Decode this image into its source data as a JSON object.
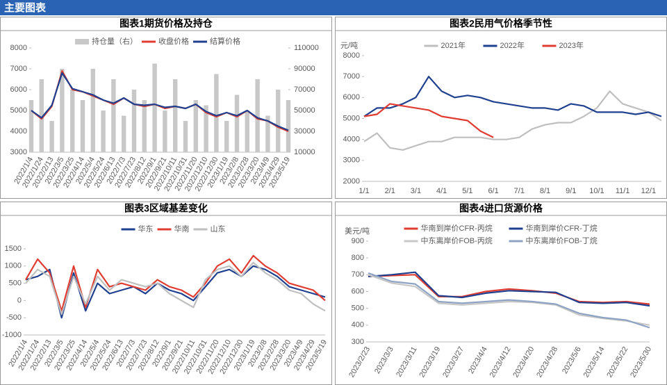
{
  "header": {
    "title": "主要图表"
  },
  "chart_data": [
    {
      "type": "combo",
      "title": "图表1期货价格及持仓",
      "categories": [
        "2022/1/4",
        "2022/1/24",
        "2022/2/13",
        "2022/3/5",
        "2022/3/25",
        "2022/4/14",
        "2022/5/4",
        "2022/5/24",
        "2022/6/13",
        "2022/7/3",
        "2022/7/23",
        "2022/8/12",
        "2022/9/1",
        "2022/9/21",
        "2022/10/11",
        "2022/10/31",
        "2022/11/20",
        "2022/12/10",
        "2022/12/30",
        "2023/1/19",
        "2023/2/8",
        "2023/2/28",
        "2023/3/20",
        "2023/4/9",
        "2023/4/29",
        "2023/5/19"
      ],
      "series": [
        {
          "name": "持仓量（右）",
          "kind": "bar",
          "axis": "y2",
          "color": "#c8c8c8",
          "values": [
            60000,
            80000,
            40000,
            90000,
            70000,
            60000,
            90000,
            50000,
            80000,
            45000,
            70000,
            60000,
            95000,
            50000,
            80000,
            40000,
            60000,
            55000,
            85000,
            40000,
            65000,
            50000,
            80000,
            45000,
            70000,
            60000
          ]
        },
        {
          "name": "收盘价格",
          "kind": "line",
          "color": "#e03c31",
          "values": [
            5000,
            4600,
            5200,
            6900,
            6000,
            5900,
            5700,
            5500,
            5300,
            5600,
            5300,
            5200,
            5300,
            5100,
            5200,
            5100,
            5300,
            4900,
            4700,
            4900,
            4700,
            5000,
            4600,
            4500,
            4200,
            4000
          ]
        },
        {
          "name": "结算价格",
          "kind": "line",
          "color": "#1f3f8f",
          "values": [
            5000,
            4650,
            5250,
            6800,
            6050,
            5900,
            5750,
            5500,
            5350,
            5600,
            5300,
            5250,
            5300,
            5150,
            5200,
            5100,
            5300,
            4950,
            4750,
            4900,
            4750,
            5000,
            4650,
            4500,
            4250,
            4050
          ]
        }
      ],
      "ylim": [
        3000,
        8000
      ],
      "yticks": [
        3000,
        4000,
        5000,
        6000,
        7000,
        8000
      ],
      "y2lim": [
        10000,
        110000
      ],
      "y2ticks": [
        10000,
        30000,
        50000,
        70000,
        90000,
        110000
      ]
    },
    {
      "type": "line",
      "title": "图表2民用气价格季节性",
      "ylabel": "元/吨",
      "categories": [
        "1/1",
        null,
        "2/1",
        null,
        "3/1",
        null,
        "4/1",
        null,
        "5/1",
        null,
        "6/1",
        null,
        "7/1",
        null,
        "8/1",
        null,
        "9/1",
        null,
        "10/1",
        null,
        "11/1",
        null,
        "12/1",
        null
      ],
      "series": [
        {
          "name": "2021年",
          "color": "#bfbfbf",
          "values": [
            3900,
            4300,
            3600,
            3500,
            3700,
            3900,
            3900,
            4100,
            4100,
            4100,
            4000,
            4000,
            4100,
            4500,
            4700,
            4800,
            4800,
            5100,
            5500,
            6300,
            5700,
            5500,
            5300,
            4900
          ]
        },
        {
          "name": "2022年",
          "color": "#1f3f8f",
          "values": [
            5100,
            5500,
            5500,
            5700,
            6000,
            7000,
            6300,
            6000,
            6100,
            6000,
            5800,
            5700,
            5600,
            5500,
            5500,
            5400,
            5700,
            5600,
            5300,
            5300,
            5300,
            5200,
            5300,
            5100
          ]
        },
        {
          "name": "2023年",
          "color": "#e03c31",
          "values": [
            5100,
            5200,
            5700,
            5600,
            5500,
            5400,
            5100,
            5000,
            4900,
            4400,
            4100,
            null,
            null,
            null,
            null,
            null,
            null,
            null,
            null,
            null,
            null,
            null,
            null,
            null
          ]
        }
      ],
      "ylim": [
        2000,
        8000
      ],
      "yticks": [
        2000,
        3000,
        4000,
        5000,
        6000,
        7000,
        8000
      ]
    },
    {
      "type": "line",
      "title": "图表3区域基差变化",
      "categories": [
        "2022/1/4",
        "2022/1/24",
        "2022/2/13",
        "2022/3/5",
        "2022/3/25",
        "2022/4/14",
        "2022/5/4",
        "2022/5/24",
        "2022/6/13",
        "2022/7/3",
        "2022/7/23",
        "2022/8/12",
        "2022/9/1",
        "2022/9/21",
        "2022/10/11",
        "2022/10/31",
        "2022/11/20",
        "2022/12/10",
        "2022/12/30",
        "2023/1/19",
        "2023/2/8",
        "2023/2/28",
        "2023/3/20",
        "2023/4/9",
        "2023/4/29",
        "2023/5/19"
      ],
      "series": [
        {
          "name": "华东",
          "color": "#1f3f8f",
          "values": [
            600,
            700,
            900,
            -500,
            800,
            -300,
            500,
            200,
            300,
            400,
            200,
            500,
            300,
            200,
            0,
            400,
            800,
            900,
            700,
            1000,
            900,
            700,
            400,
            300,
            200,
            100
          ]
        },
        {
          "name": "华南",
          "color": "#e03c31",
          "values": [
            600,
            1200,
            800,
            -300,
            1000,
            -200,
            900,
            400,
            500,
            400,
            300,
            600,
            400,
            300,
            100,
            500,
            1000,
            1200,
            800,
            1300,
            1000,
            800,
            500,
            400,
            300,
            0
          ]
        },
        {
          "name": "山东",
          "color": "#bfbfbf",
          "values": [
            500,
            900,
            700,
            -400,
            700,
            -100,
            700,
            300,
            600,
            500,
            400,
            500,
            200,
            0,
            -200,
            600,
            900,
            1000,
            700,
            1100,
            800,
            600,
            300,
            200,
            -100,
            -300
          ]
        }
      ],
      "ylim": [
        -1000,
        1500
      ],
      "yticks": [
        -1000,
        -500,
        0,
        500,
        1000,
        1500
      ]
    },
    {
      "type": "line",
      "title": "图表4进口货源价格",
      "ylabel": "美元/吨",
      "categories": [
        "2023/2/23",
        "2023/3/3",
        "2023/3/11",
        "2023/3/19",
        "2023/3/27",
        "2023/4/4",
        "2023/4/12",
        "2023/4/20",
        "2023/4/28",
        "2023/5/6",
        "2023/5/14",
        "2023/5/22",
        "2023/5/30"
      ],
      "series": [
        {
          "name": "华南到岸价CFR-丙烷",
          "color": "#e03c31",
          "values": [
            690,
            695,
            700,
            570,
            570,
            600,
            615,
            605,
            590,
            540,
            535,
            540,
            525
          ]
        },
        {
          "name": "华南到岸价CFR-丁烷",
          "color": "#1f3f8f",
          "values": [
            690,
            700,
            715,
            575,
            565,
            590,
            605,
            600,
            595,
            535,
            530,
            535,
            515
          ]
        },
        {
          "name": "中东离岸价FOB-丙烷",
          "color": "#c8c8c8",
          "values": [
            700,
            650,
            630,
            530,
            520,
            530,
            540,
            535,
            520,
            460,
            440,
            425,
            400
          ]
        },
        {
          "name": "中东离岸价FOB-丁烷",
          "color": "#8ea3c4",
          "values": [
            710,
            660,
            645,
            540,
            530,
            540,
            550,
            540,
            525,
            470,
            445,
            430,
            385
          ]
        }
      ],
      "ylim": [
        300,
        900
      ],
      "yticks": [
        300,
        400,
        500,
        600,
        700,
        800,
        900
      ]
    }
  ]
}
